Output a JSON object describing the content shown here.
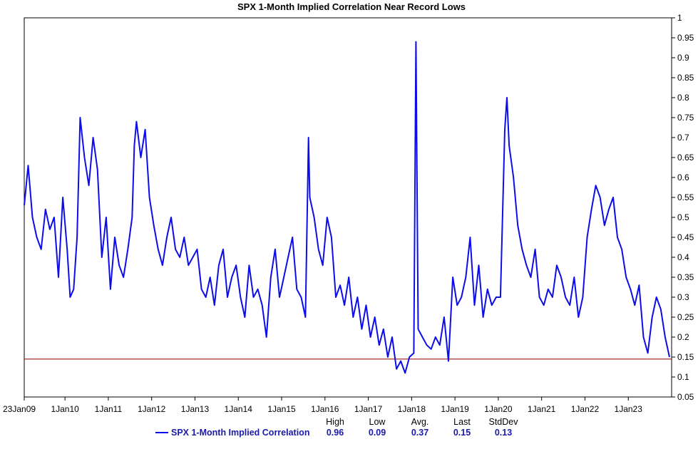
{
  "chart_data": {
    "type": "line",
    "title": "SPX 1-Month Implied Correlation Near Record Lows",
    "x_tick_labels": [
      "23Jan09",
      "1Jan10",
      "1Jan11",
      "1Jan12",
      "1Jan13",
      "1Jan14",
      "1Jan15",
      "1Jan16",
      "1Jan17",
      "1Jan18",
      "1Jan19",
      "1Jan20",
      "1Jan21",
      "1Jan22",
      "1Jan23"
    ],
    "x_tick_years": [
      2009.06,
      2010.0,
      2011.0,
      2012.0,
      2013.0,
      2014.0,
      2015.0,
      2016.0,
      2017.0,
      2018.0,
      2019.0,
      2020.0,
      2021.0,
      2022.0,
      2023.0
    ],
    "xlim": [
      2009.06,
      2024.0
    ],
    "y_tick_labels": [
      "1",
      "0.95",
      "0.9",
      "0.85",
      "0.8",
      "0.75",
      "0.7",
      "0.65",
      "0.6",
      "0.55",
      "0.5",
      "0.45",
      "0.4",
      "0.35",
      "0.3",
      "0.25",
      "0.2",
      "0.15",
      "0.1",
      "0.05"
    ],
    "ylim": [
      0.05,
      1.0
    ],
    "y_axis_side": "right",
    "grid": false,
    "reference_line": {
      "value": 0.145,
      "color": "#a01818"
    },
    "series": [
      {
        "name": "SPX 1-Month Implied Correlation",
        "color": "#0d0de8",
        "x": [
          2009.06,
          2009.15,
          2009.25,
          2009.35,
          2009.45,
          2009.55,
          2009.65,
          2009.75,
          2009.85,
          2009.95,
          2010.05,
          2010.12,
          2010.2,
          2010.28,
          2010.35,
          2010.45,
          2010.55,
          2010.65,
          2010.75,
          2010.85,
          2010.95,
          2011.05,
          2011.15,
          2011.25,
          2011.35,
          2011.45,
          2011.55,
          2011.6,
          2011.65,
          2011.75,
          2011.85,
          2011.95,
          2012.05,
          2012.15,
          2012.25,
          2012.35,
          2012.45,
          2012.55,
          2012.65,
          2012.75,
          2012.85,
          2012.95,
          2013.05,
          2013.15,
          2013.25,
          2013.35,
          2013.45,
          2013.55,
          2013.65,
          2013.75,
          2013.85,
          2013.95,
          2014.05,
          2014.15,
          2014.25,
          2014.35,
          2014.45,
          2014.55,
          2014.65,
          2014.75,
          2014.85,
          2014.95,
          2015.05,
          2015.15,
          2015.25,
          2015.35,
          2015.45,
          2015.55,
          2015.62,
          2015.65,
          2015.75,
          2015.85,
          2015.95,
          2016.05,
          2016.15,
          2016.25,
          2016.35,
          2016.45,
          2016.55,
          2016.65,
          2016.75,
          2016.85,
          2016.95,
          2017.05,
          2017.15,
          2017.25,
          2017.35,
          2017.45,
          2017.55,
          2017.65,
          2017.75,
          2017.85,
          2017.95,
          2018.05,
          2018.1,
          2018.15,
          2018.25,
          2018.35,
          2018.45,
          2018.55,
          2018.65,
          2018.75,
          2018.85,
          2018.95,
          2019.05,
          2019.15,
          2019.25,
          2019.35,
          2019.45,
          2019.55,
          2019.65,
          2019.75,
          2019.85,
          2019.95,
          2020.05,
          2020.15,
          2020.2,
          2020.25,
          2020.35,
          2020.45,
          2020.55,
          2020.65,
          2020.75,
          2020.85,
          2020.95,
          2021.05,
          2021.15,
          2021.25,
          2021.35,
          2021.45,
          2021.55,
          2021.65,
          2021.75,
          2021.85,
          2021.95,
          2022.05,
          2022.15,
          2022.25,
          2022.35,
          2022.45,
          2022.55,
          2022.65,
          2022.75,
          2022.85,
          2022.95,
          2023.05,
          2023.15,
          2023.25,
          2023.35,
          2023.45,
          2023.55,
          2023.65,
          2023.75,
          2023.85,
          2023.95
        ],
        "y": [
          0.53,
          0.63,
          0.5,
          0.45,
          0.42,
          0.52,
          0.47,
          0.5,
          0.35,
          0.55,
          0.42,
          0.3,
          0.32,
          0.45,
          0.75,
          0.65,
          0.58,
          0.7,
          0.62,
          0.4,
          0.5,
          0.32,
          0.45,
          0.38,
          0.35,
          0.42,
          0.5,
          0.68,
          0.74,
          0.65,
          0.72,
          0.55,
          0.48,
          0.42,
          0.38,
          0.45,
          0.5,
          0.42,
          0.4,
          0.45,
          0.38,
          0.4,
          0.42,
          0.32,
          0.3,
          0.35,
          0.28,
          0.38,
          0.42,
          0.3,
          0.35,
          0.38,
          0.3,
          0.25,
          0.38,
          0.3,
          0.32,
          0.28,
          0.2,
          0.35,
          0.42,
          0.3,
          0.35,
          0.4,
          0.45,
          0.32,
          0.3,
          0.25,
          0.7,
          0.55,
          0.5,
          0.42,
          0.38,
          0.5,
          0.45,
          0.3,
          0.33,
          0.28,
          0.35,
          0.25,
          0.3,
          0.22,
          0.28,
          0.2,
          0.25,
          0.18,
          0.22,
          0.15,
          0.2,
          0.12,
          0.14,
          0.11,
          0.15,
          0.16,
          0.94,
          0.22,
          0.2,
          0.18,
          0.17,
          0.2,
          0.18,
          0.25,
          0.14,
          0.35,
          0.28,
          0.3,
          0.35,
          0.45,
          0.28,
          0.38,
          0.25,
          0.32,
          0.28,
          0.3,
          0.3,
          0.72,
          0.8,
          0.68,
          0.6,
          0.48,
          0.42,
          0.38,
          0.35,
          0.42,
          0.3,
          0.28,
          0.32,
          0.3,
          0.38,
          0.35,
          0.3,
          0.28,
          0.35,
          0.25,
          0.3,
          0.45,
          0.52,
          0.58,
          0.55,
          0.48,
          0.52,
          0.55,
          0.45,
          0.42,
          0.35,
          0.32,
          0.28,
          0.33,
          0.2,
          0.16,
          0.25,
          0.3,
          0.27,
          0.2,
          0.15
        ]
      }
    ],
    "stats": [
      {
        "label": "High",
        "value": "0.96"
      },
      {
        "label": "Low",
        "value": "0.09"
      },
      {
        "label": "Avg.",
        "value": "0.37"
      },
      {
        "label": "Last",
        "value": "0.15"
      },
      {
        "label": "StdDev",
        "value": "0.13"
      }
    ]
  }
}
